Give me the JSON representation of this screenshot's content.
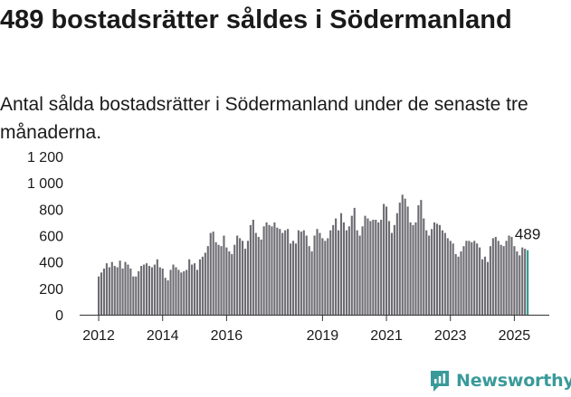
{
  "header": {
    "title": "489 bostadsrätter såldes i Södermanland",
    "subtitle": "Antal sålda bostadsrätter i Södermanland under de senaste tre månaderna."
  },
  "brand": {
    "name": "Newsworthy",
    "icon": "newsworthy-logo-icon",
    "color": "#3a9a9a"
  },
  "colors": {
    "bars": "#6d6c72",
    "highlight": "#2a9d8f",
    "axis": "#333333"
  },
  "chart_data": {
    "type": "bar",
    "title": "",
    "xlabel": "",
    "ylabel": "",
    "ylim": [
      0,
      1200
    ],
    "y_ticks": [
      0,
      200,
      400,
      600,
      800,
      1000,
      1200
    ],
    "y_tick_labels": [
      "0",
      "200",
      "400",
      "600",
      "800",
      "1 000",
      "1 200"
    ],
    "x_ticks": [
      "2012",
      "2014",
      "2016",
      "2019",
      "2021",
      "2023",
      "2025"
    ],
    "x_tick_month_index": [
      0,
      24,
      48,
      84,
      108,
      132,
      156
    ],
    "start": "2012-01",
    "end": "2025-02",
    "highlight_label": "489",
    "grid": false,
    "series": [
      {
        "values": [
          290,
          320,
          350,
          390,
          360,
          400,
          370,
          360,
          410,
          350,
          400,
          380,
          350,
          290,
          290,
          330,
          370,
          380,
          390,
          370,
          360,
          380,
          420,
          360,
          350,
          280,
          260,
          340,
          380,
          360,
          340,
          320,
          330,
          340,
          420,
          380,
          390,
          340,
          420,
          440,
          470,
          520,
          620,
          630,
          550,
          530,
          520,
          600,
          510,
          480,
          460,
          530,
          600,
          580,
          560,
          500,
          560,
          680,
          720,
          620,
          590,
          570,
          670,
          700,
          680,
          670,
          700,
          660,
          650,
          620,
          640,
          650,
          540,
          560,
          540,
          640,
          630,
          640,
          600,
          520,
          480,
          600,
          650,
          620,
          580,
          560,
          580,
          640,
          680,
          730,
          640,
          770,
          700,
          640,
          670,
          750,
          810,
          640,
          600,
          670,
          750,
          730,
          710,
          720,
          720,
          700,
          720,
          840,
          820,
          710,
          620,
          680,
          770,
          850,
          910,
          880,
          820,
          700,
          680,
          700,
          830,
          870,
          730,
          640,
          600,
          650,
          700,
          690,
          680,
          640,
          620,
          580,
          560,
          540,
          460,
          440,
          480,
          520,
          560,
          560,
          550,
          560,
          540,
          510,
          420,
          440,
          400,
          520,
          580,
          590,
          560,
          530,
          520,
          560,
          600,
          590,
          520,
          480,
          450,
          510,
          500,
          489
        ]
      }
    ]
  }
}
